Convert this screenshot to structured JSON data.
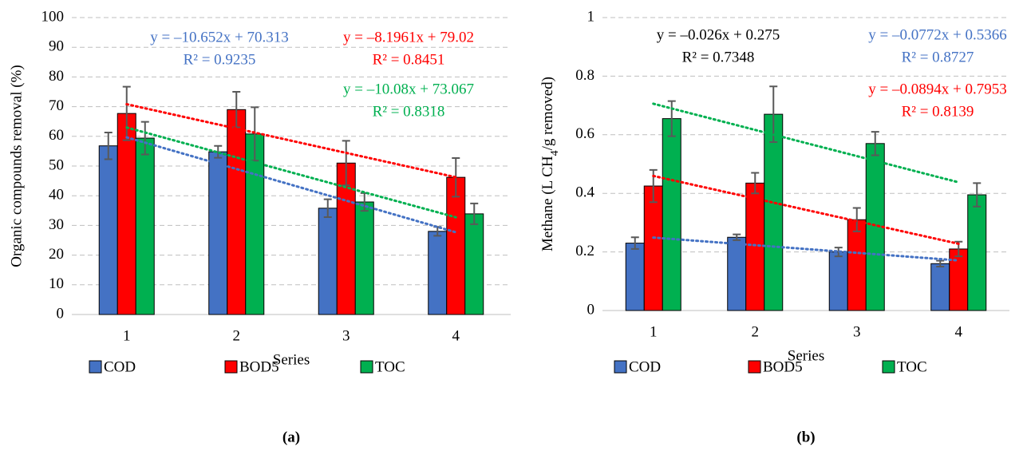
{
  "chart_data": [
    {
      "type": "bar",
      "caption": "(a)",
      "ylabel": "Organic compounds removal (%)",
      "xlabel": "Series",
      "categories": [
        "1",
        "2",
        "3",
        "4"
      ],
      "ylim": [
        0,
        100
      ],
      "yticks": [
        0,
        10,
        20,
        30,
        40,
        50,
        60,
        70,
        80,
        90,
        100
      ],
      "grid": true,
      "series": [
        {
          "name": "COD",
          "color": "#4472c4",
          "values": [
            56.8,
            54.8,
            35.8,
            28.0
          ],
          "errors": [
            4.5,
            2.0,
            3.0,
            1.5
          ],
          "trend_slope": -10.652,
          "trend_intercept": 70.313,
          "equation": "y = –10.652x + 70.313",
          "r2": "R² = 0.9235",
          "label_color": "#4472c4"
        },
        {
          "name": "BOD5",
          "color": "#ff0000",
          "values": [
            67.7,
            69.0,
            51.0,
            46.2
          ],
          "errors": [
            9.0,
            6.0,
            7.5,
            6.5
          ],
          "trend_slope": -8.1961,
          "trend_intercept": 79.02,
          "equation": "y = –8.1961x + 79.02",
          "r2": "R² = 0.8451",
          "label_color": "#ff0000"
        },
        {
          "name": "TOC",
          "color": "#00b050",
          "values": [
            59.4,
            60.8,
            37.9,
            33.9
          ],
          "errors": [
            5.5,
            9.0,
            3.0,
            3.5
          ],
          "trend_slope": -10.08,
          "trend_intercept": 73.067,
          "equation": "y = –10.08x + 73.067",
          "r2": "R² = 0.8318",
          "label_color": "#00b050"
        }
      ]
    },
    {
      "type": "bar",
      "caption": "(b)",
      "ylabel_parts": [
        "Methane (L CH",
        "4",
        "/g removed)"
      ],
      "xlabel": "Series",
      "categories": [
        "1",
        "2",
        "3",
        "4"
      ],
      "ylim": [
        0,
        1
      ],
      "yticks": [
        0,
        0.2,
        0.4,
        0.6,
        0.8,
        1
      ],
      "grid": true,
      "series": [
        {
          "name": "COD",
          "color": "#4472c4",
          "values": [
            0.23,
            0.25,
            0.2,
            0.16
          ],
          "errors": [
            0.02,
            0.01,
            0.015,
            0.01
          ],
          "trend_slope": -0.026,
          "trend_intercept": 0.275,
          "equation": "y = –0.026x + 0.275",
          "r2": "R² = 0.7348",
          "label_color": "#000000"
        },
        {
          "name": "BOD5",
          "color": "#ff0000",
          "values": [
            0.425,
            0.435,
            0.31,
            0.21
          ],
          "errors": [
            0.055,
            0.035,
            0.04,
            0.025
          ],
          "trend_slope": -0.0772,
          "trend_intercept": 0.5366,
          "equation": "y = –0.0772x + 0.5366",
          "r2": "R² = 0.8727",
          "label_color": "#4472c4"
        },
        {
          "name": "TOC",
          "color": "#00b050",
          "values": [
            0.655,
            0.67,
            0.57,
            0.395
          ],
          "errors": [
            0.06,
            0.095,
            0.04,
            0.04
          ],
          "trend_slope": -0.0894,
          "trend_intercept": 0.7953,
          "equation": "y = –0.0894x + 0.7953",
          "r2": "R² = 0.8139",
          "label_color": "#ff0000"
        }
      ]
    }
  ]
}
